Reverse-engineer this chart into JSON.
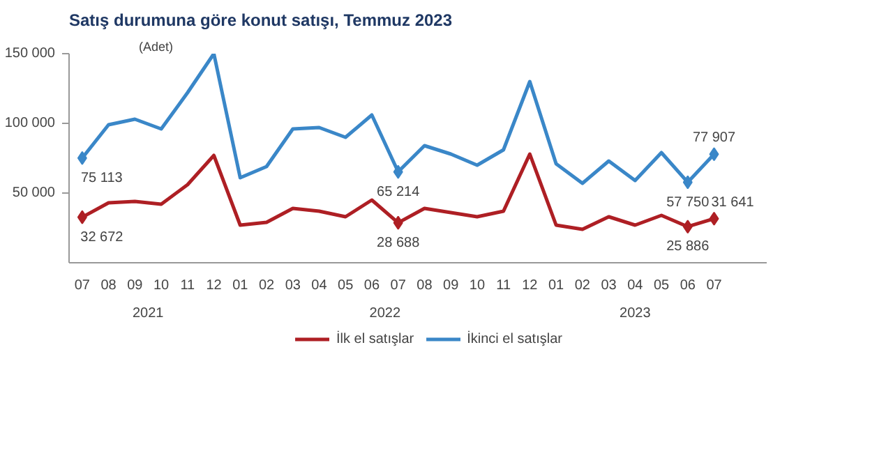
{
  "chart_data": {
    "type": "line",
    "title": "Satış durumuna göre konut satışı, Temmuz 2023",
    "ylabel": "(Adet)",
    "categories": [
      "07",
      "08",
      "09",
      "10",
      "11",
      "12",
      "01",
      "02",
      "03",
      "04",
      "05",
      "06",
      "07",
      "08",
      "09",
      "10",
      "11",
      "12",
      "01",
      "02",
      "03",
      "04",
      "05",
      "06",
      "07"
    ],
    "annotations": [
      "2021",
      "2022",
      "2023"
    ],
    "ylim": [
      0,
      150000
    ],
    "yticks": [
      {
        "value": 50000,
        "label": "50 000"
      },
      {
        "value": 100000,
        "label": "100 000"
      },
      {
        "value": 150000,
        "label": "150 000"
      }
    ],
    "grid": false,
    "legend": "bottom",
    "line_style": "solid",
    "series": [
      {
        "name": "İlk el satışlar",
        "color": "#ae1f24",
        "values": [
          32672,
          43000,
          44000,
          42000,
          56000,
          77000,
          27000,
          29000,
          39000,
          37000,
          33000,
          45000,
          28688,
          39000,
          36000,
          33000,
          37000,
          78000,
          27000,
          24000,
          33000,
          27000,
          34000,
          25886,
          31641
        ],
        "value_labels": [
          "32 672",
          null,
          null,
          null,
          null,
          null,
          null,
          null,
          null,
          null,
          null,
          null,
          "28 688",
          null,
          null,
          null,
          null,
          null,
          null,
          null,
          null,
          null,
          null,
          "25 886",
          "31 641"
        ]
      },
      {
        "name": "İkinci el satışlar",
        "color": "#3a87c8",
        "values": [
          75113,
          99000,
          103000,
          96000,
          122000,
          150000,
          61000,
          69000,
          96000,
          97000,
          90000,
          106000,
          65214,
          84000,
          78000,
          70000,
          81000,
          130000,
          71000,
          57000,
          73000,
          59000,
          79000,
          57750,
          77907
        ],
        "value_labels": [
          "75 113",
          null,
          null,
          null,
          null,
          null,
          null,
          null,
          null,
          null,
          null,
          null,
          "65 214",
          null,
          null,
          null,
          null,
          null,
          null,
          null,
          null,
          null,
          null,
          "57 750",
          "77 907"
        ]
      }
    ]
  }
}
